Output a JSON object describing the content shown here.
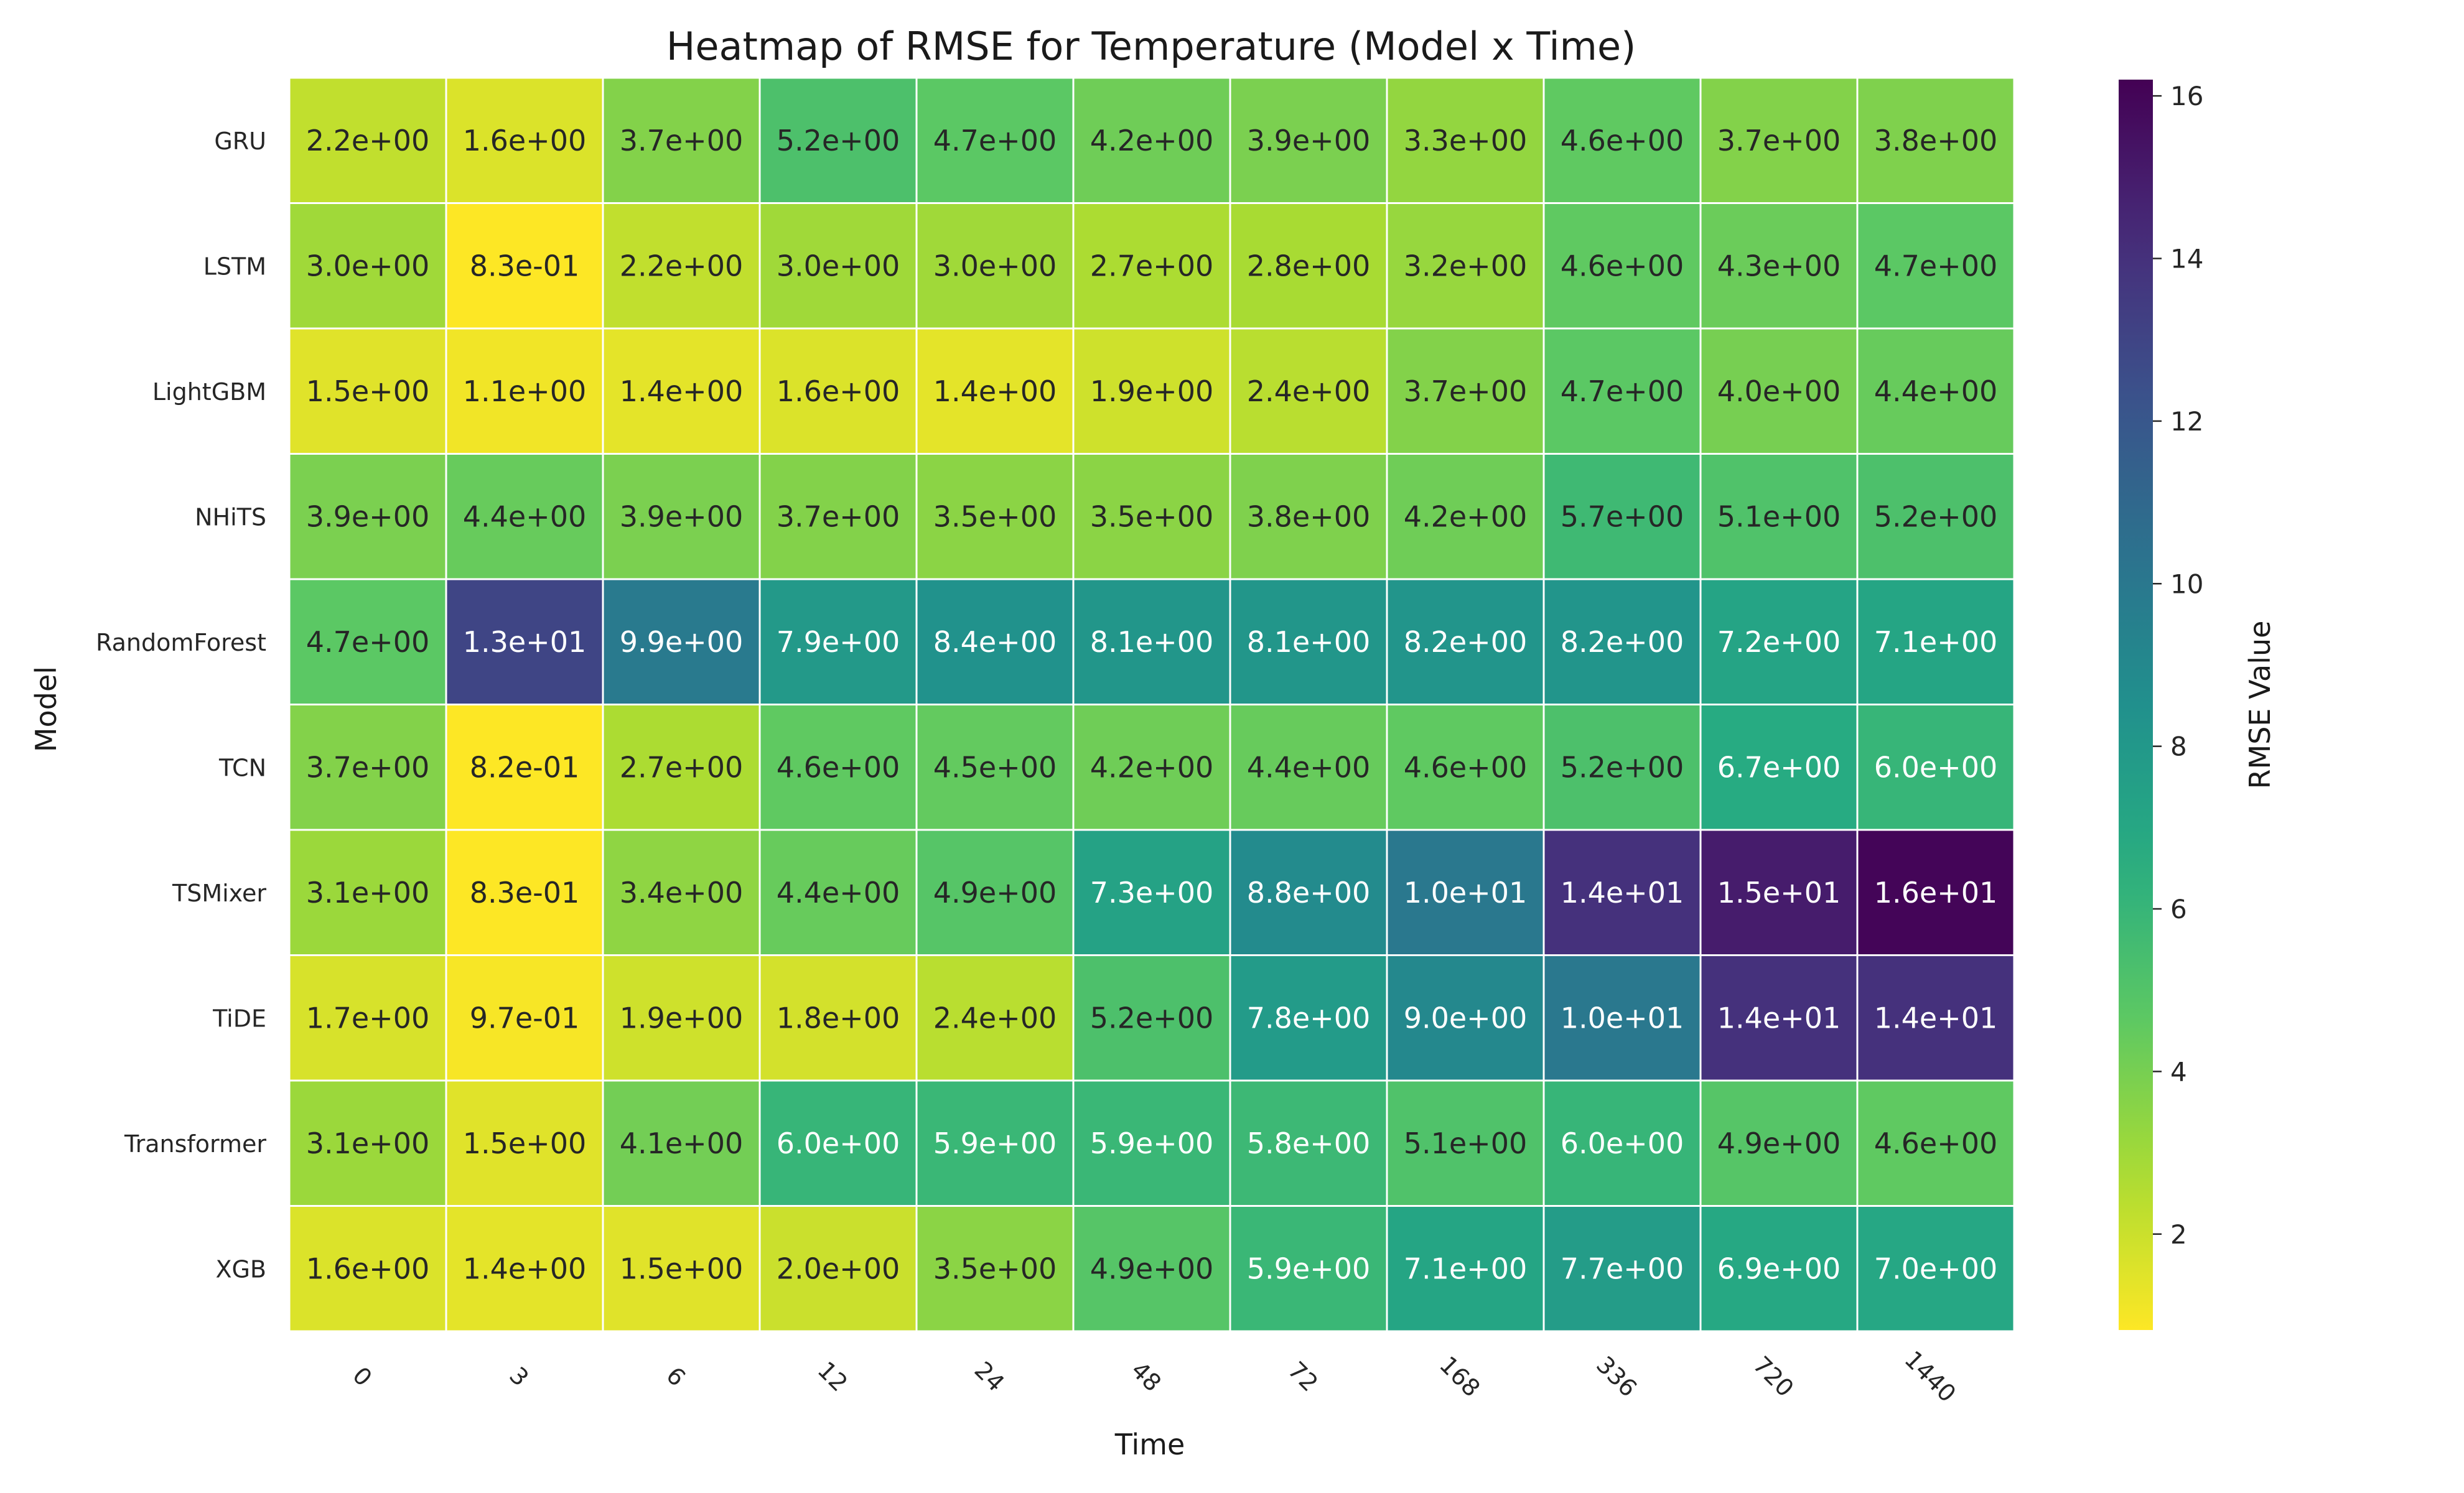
{
  "chart_data": {
    "type": "heatmap",
    "title": "Heatmap of RMSE for Temperature (Model x Time)",
    "xlabel": "Time",
    "ylabel": "Model",
    "colorbar_label": "RMSE Value",
    "colormap": "viridis_r",
    "vmin": 0.82,
    "vmax": 16.2,
    "colorbar_ticks": [
      2,
      4,
      6,
      8,
      10,
      12,
      14,
      16
    ],
    "x": [
      "0",
      "3",
      "6",
      "12",
      "24",
      "48",
      "72",
      "168",
      "336",
      "720",
      "1440"
    ],
    "y": [
      "GRU",
      "LSTM",
      "LightGBM",
      "NHiTS",
      "RandomForest",
      "TCN",
      "TSMixer",
      "TiDE",
      "Transformer",
      "XGB"
    ],
    "values": [
      [
        2.2,
        1.6,
        3.7,
        5.2,
        4.7,
        4.2,
        3.9,
        3.3,
        4.6,
        3.7,
        3.8
      ],
      [
        3.0,
        0.83,
        2.2,
        3.0,
        3.0,
        2.7,
        2.8,
        3.2,
        4.6,
        4.3,
        4.7
      ],
      [
        1.5,
        1.1,
        1.4,
        1.6,
        1.4,
        1.9,
        2.4,
        3.7,
        4.7,
        4.0,
        4.4
      ],
      [
        3.9,
        4.4,
        3.9,
        3.7,
        3.5,
        3.5,
        3.8,
        4.2,
        5.7,
        5.1,
        5.2
      ],
      [
        4.7,
        13,
        9.9,
        7.9,
        8.4,
        8.1,
        8.1,
        8.2,
        8.2,
        7.2,
        7.1
      ],
      [
        3.7,
        0.82,
        2.7,
        4.6,
        4.5,
        4.2,
        4.4,
        4.6,
        5.2,
        6.7,
        6.0
      ],
      [
        3.1,
        0.83,
        3.4,
        4.4,
        4.9,
        7.3,
        8.8,
        10,
        14,
        15,
        16
      ],
      [
        1.7,
        0.97,
        1.9,
        1.8,
        2.4,
        5.2,
        7.8,
        9.0,
        10,
        14,
        14
      ],
      [
        3.1,
        1.5,
        4.1,
        6.0,
        5.9,
        5.9,
        5.8,
        5.1,
        6.0,
        4.9,
        4.6
      ],
      [
        1.6,
        1.4,
        1.5,
        2.0,
        3.5,
        4.9,
        5.9,
        7.1,
        7.7,
        6.9,
        7.0
      ]
    ],
    "labels": [
      [
        "2.2e+00",
        "1.6e+00",
        "3.7e+00",
        "5.2e+00",
        "4.7e+00",
        "4.2e+00",
        "3.9e+00",
        "3.3e+00",
        "4.6e+00",
        "3.7e+00",
        "3.8e+00"
      ],
      [
        "3.0e+00",
        "8.3e-01",
        "2.2e+00",
        "3.0e+00",
        "3.0e+00",
        "2.7e+00",
        "2.8e+00",
        "3.2e+00",
        "4.6e+00",
        "4.3e+00",
        "4.7e+00"
      ],
      [
        "1.5e+00",
        "1.1e+00",
        "1.4e+00",
        "1.6e+00",
        "1.4e+00",
        "1.9e+00",
        "2.4e+00",
        "3.7e+00",
        "4.7e+00",
        "4.0e+00",
        "4.4e+00"
      ],
      [
        "3.9e+00",
        "4.4e+00",
        "3.9e+00",
        "3.7e+00",
        "3.5e+00",
        "3.5e+00",
        "3.8e+00",
        "4.2e+00",
        "5.7e+00",
        "5.1e+00",
        "5.2e+00"
      ],
      [
        "4.7e+00",
        "1.3e+01",
        "9.9e+00",
        "7.9e+00",
        "8.4e+00",
        "8.1e+00",
        "8.1e+00",
        "8.2e+00",
        "8.2e+00",
        "7.2e+00",
        "7.1e+00"
      ],
      [
        "3.7e+00",
        "8.2e-01",
        "2.7e+00",
        "4.6e+00",
        "4.5e+00",
        "4.2e+00",
        "4.4e+00",
        "4.6e+00",
        "5.2e+00",
        "6.7e+00",
        "6.0e+00"
      ],
      [
        "3.1e+00",
        "8.3e-01",
        "3.4e+00",
        "4.4e+00",
        "4.9e+00",
        "7.3e+00",
        "8.8e+00",
        "1.0e+01",
        "1.4e+01",
        "1.5e+01",
        "1.6e+01"
      ],
      [
        "1.7e+00",
        "9.7e-01",
        "1.9e+00",
        "1.8e+00",
        "2.4e+00",
        "5.2e+00",
        "7.8e+00",
        "9.0e+00",
        "1.0e+01",
        "1.4e+01",
        "1.4e+01"
      ],
      [
        "3.1e+00",
        "1.5e+00",
        "4.1e+00",
        "6.0e+00",
        "5.9e+00",
        "5.9e+00",
        "5.8e+00",
        "5.1e+00",
        "6.0e+00",
        "4.9e+00",
        "4.6e+00"
      ],
      [
        "1.6e+00",
        "1.4e+00",
        "1.5e+00",
        "2.0e+00",
        "3.5e+00",
        "4.9e+00",
        "5.9e+00",
        "7.1e+00",
        "7.7e+00",
        "6.9e+00",
        "7.0e+00"
      ]
    ],
    "grid": false,
    "legend": "colorbar-right"
  }
}
